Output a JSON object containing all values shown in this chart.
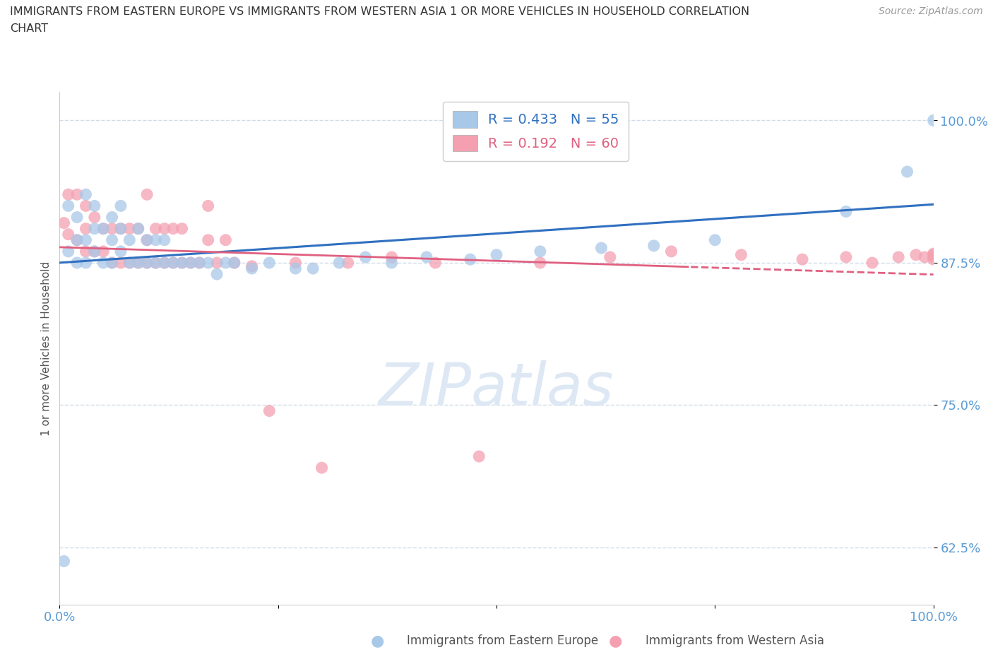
{
  "title_line1": "IMMIGRANTS FROM EASTERN EUROPE VS IMMIGRANTS FROM WESTERN ASIA 1 OR MORE VEHICLES IN HOUSEHOLD CORRELATION",
  "title_line2": "CHART",
  "source_text": "Source: ZipAtlas.com",
  "ylabel": "1 or more Vehicles in Household",
  "legend_label_blue": "Immigrants from Eastern Europe",
  "legend_label_pink": "Immigrants from Western Asia",
  "R_blue": 0.433,
  "N_blue": 55,
  "R_pink": 0.192,
  "N_pink": 60,
  "blue_color": "#a8c8e8",
  "pink_color": "#f4a0b0",
  "blue_line_color": "#3070c0",
  "pink_line_color": "#e06080",
  "watermark_color": "#dde8f4",
  "axis_label_color": "#5b9bd5",
  "grid_color": "#d0dce8",
  "xlim": [
    0.0,
    1.0
  ],
  "ylim": [
    0.575,
    1.025
  ],
  "ytick_values": [
    0.625,
    0.75,
    0.875,
    1.0
  ],
  "ytick_labels": [
    "62.5%",
    "75.0%",
    "87.5%",
    "100.0%"
  ],
  "blue_scatter_x": [
    0.005,
    0.01,
    0.01,
    0.02,
    0.02,
    0.02,
    0.03,
    0.03,
    0.03,
    0.04,
    0.04,
    0.04,
    0.05,
    0.05,
    0.06,
    0.06,
    0.06,
    0.07,
    0.07,
    0.07,
    0.08,
    0.08,
    0.09,
    0.09,
    0.1,
    0.1,
    0.11,
    0.11,
    0.12,
    0.12,
    0.13,
    0.14,
    0.15,
    0.16,
    0.17,
    0.18,
    0.19,
    0.2,
    0.22,
    0.24,
    0.27,
    0.29,
    0.32,
    0.35,
    0.38,
    0.42,
    0.47,
    0.5,
    0.55,
    0.62,
    0.68,
    0.75,
    0.9,
    0.97,
    1.0
  ],
  "blue_scatter_y": [
    0.613,
    0.885,
    0.925,
    0.875,
    0.895,
    0.915,
    0.875,
    0.895,
    0.935,
    0.885,
    0.905,
    0.925,
    0.875,
    0.905,
    0.875,
    0.895,
    0.915,
    0.885,
    0.905,
    0.925,
    0.875,
    0.895,
    0.875,
    0.905,
    0.875,
    0.895,
    0.875,
    0.895,
    0.875,
    0.895,
    0.875,
    0.875,
    0.875,
    0.875,
    0.875,
    0.865,
    0.875,
    0.875,
    0.87,
    0.875,
    0.87,
    0.87,
    0.875,
    0.88,
    0.875,
    0.88,
    0.878,
    0.882,
    0.885,
    0.888,
    0.89,
    0.895,
    0.92,
    0.955,
    1.0
  ],
  "pink_scatter_x": [
    0.005,
    0.01,
    0.01,
    0.02,
    0.02,
    0.03,
    0.03,
    0.03,
    0.04,
    0.04,
    0.05,
    0.05,
    0.06,
    0.06,
    0.07,
    0.07,
    0.08,
    0.08,
    0.09,
    0.09,
    0.1,
    0.1,
    0.1,
    0.11,
    0.11,
    0.12,
    0.12,
    0.13,
    0.13,
    0.14,
    0.14,
    0.15,
    0.16,
    0.17,
    0.17,
    0.18,
    0.19,
    0.2,
    0.22,
    0.24,
    0.27,
    0.3,
    0.33,
    0.38,
    0.43,
    0.48,
    0.55,
    0.63,
    0.7,
    0.78,
    0.85,
    0.9,
    0.93,
    0.96,
    0.98,
    0.99,
    1.0,
    1.0,
    1.0,
    1.0
  ],
  "pink_scatter_y": [
    0.91,
    0.9,
    0.935,
    0.895,
    0.935,
    0.885,
    0.905,
    0.925,
    0.885,
    0.915,
    0.885,
    0.905,
    0.875,
    0.905,
    0.875,
    0.905,
    0.875,
    0.905,
    0.875,
    0.905,
    0.875,
    0.895,
    0.935,
    0.875,
    0.905,
    0.875,
    0.905,
    0.875,
    0.905,
    0.875,
    0.905,
    0.875,
    0.875,
    0.895,
    0.925,
    0.875,
    0.895,
    0.875,
    0.872,
    0.745,
    0.875,
    0.695,
    0.875,
    0.88,
    0.875,
    0.705,
    0.875,
    0.88,
    0.885,
    0.882,
    0.878,
    0.88,
    0.875,
    0.88,
    0.882,
    0.88,
    0.878,
    0.883,
    0.88,
    0.882
  ]
}
